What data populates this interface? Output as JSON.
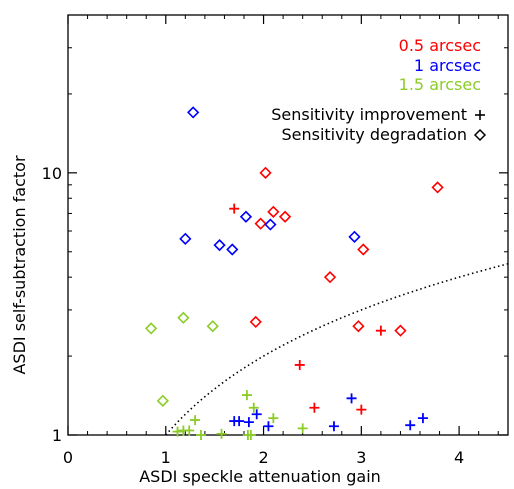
{
  "chart_data": {
    "type": "scatter",
    "title": "",
    "xlabel": "ASDI speckle attenuation gain",
    "ylabel": "ASDI self-subtraction factor",
    "xlim": [
      0,
      4.5
    ],
    "ylim": [
      1,
      40
    ],
    "y_scale": "log",
    "x_ticks": [
      "0",
      "1",
      "2",
      "3",
      "4"
    ],
    "y_ticks": [
      "1",
      "10"
    ],
    "grid": false,
    "legend_position": "top-right",
    "legend": {
      "separations": [
        {
          "label": "0.5 arcsec",
          "color": "#ff0000"
        },
        {
          "label": "1 arcsec",
          "color": "#0000ff"
        },
        {
          "label": "1.5 arcsec",
          "color": "#8ccc28"
        }
      ],
      "markers": [
        {
          "label": "Sensitivity improvement",
          "symbol": "+"
        },
        {
          "label": "Sensitivity degradation",
          "symbol": "diamond"
        }
      ]
    },
    "boundary_curve": {
      "style": "dotted",
      "description_formula": "y = x"
    },
    "series": [
      {
        "name": "0.5 arcsec",
        "color": "#ff0000",
        "points": [
          {
            "x": 2.02,
            "y": 10.0,
            "marker": "diamond"
          },
          {
            "x": 3.78,
            "y": 8.8,
            "marker": "diamond"
          },
          {
            "x": 2.1,
            "y": 7.1,
            "marker": "diamond"
          },
          {
            "x": 2.22,
            "y": 6.8,
            "marker": "diamond"
          },
          {
            "x": 1.97,
            "y": 6.4,
            "marker": "diamond"
          },
          {
            "x": 3.02,
            "y": 5.1,
            "marker": "diamond"
          },
          {
            "x": 2.68,
            "y": 4.0,
            "marker": "diamond"
          },
          {
            "x": 1.92,
            "y": 2.7,
            "marker": "diamond"
          },
          {
            "x": 2.97,
            "y": 2.6,
            "marker": "diamond"
          },
          {
            "x": 3.4,
            "y": 2.5,
            "marker": "diamond"
          },
          {
            "x": 1.7,
            "y": 7.3,
            "marker": "plus"
          },
          {
            "x": 3.2,
            "y": 2.5,
            "marker": "plus"
          },
          {
            "x": 2.37,
            "y": 1.85,
            "marker": "plus"
          },
          {
            "x": 2.52,
            "y": 1.27,
            "marker": "plus"
          },
          {
            "x": 3.0,
            "y": 1.25,
            "marker": "plus"
          }
        ]
      },
      {
        "name": "1 arcsec",
        "color": "#0000ff",
        "points": [
          {
            "x": 1.28,
            "y": 17.0,
            "marker": "diamond"
          },
          {
            "x": 1.82,
            "y": 6.8,
            "marker": "diamond"
          },
          {
            "x": 2.07,
            "y": 6.35,
            "marker": "diamond"
          },
          {
            "x": 1.2,
            "y": 5.6,
            "marker": "diamond"
          },
          {
            "x": 2.93,
            "y": 5.7,
            "marker": "diamond"
          },
          {
            "x": 1.55,
            "y": 5.3,
            "marker": "diamond"
          },
          {
            "x": 1.68,
            "y": 5.1,
            "marker": "diamond"
          },
          {
            "x": 1.7,
            "y": 1.13,
            "marker": "plus"
          },
          {
            "x": 1.75,
            "y": 1.13,
            "marker": "plus"
          },
          {
            "x": 1.85,
            "y": 1.12,
            "marker": "plus"
          },
          {
            "x": 1.93,
            "y": 1.2,
            "marker": "plus"
          },
          {
            "x": 2.05,
            "y": 1.08,
            "marker": "plus"
          },
          {
            "x": 2.72,
            "y": 1.08,
            "marker": "plus"
          },
          {
            "x": 2.9,
            "y": 1.38,
            "marker": "plus"
          },
          {
            "x": 3.5,
            "y": 1.09,
            "marker": "plus"
          },
          {
            "x": 3.63,
            "y": 1.16,
            "marker": "plus"
          }
        ]
      },
      {
        "name": "1.5 arcsec",
        "color": "#8ccc28",
        "points": [
          {
            "x": 0.85,
            "y": 2.55,
            "marker": "diamond"
          },
          {
            "x": 1.18,
            "y": 2.8,
            "marker": "diamond"
          },
          {
            "x": 1.48,
            "y": 2.6,
            "marker": "diamond"
          },
          {
            "x": 0.97,
            "y": 1.35,
            "marker": "diamond"
          },
          {
            "x": 1.12,
            "y": 1.03,
            "marker": "plus"
          },
          {
            "x": 1.18,
            "y": 1.04,
            "marker": "plus"
          },
          {
            "x": 1.24,
            "y": 1.04,
            "marker": "plus"
          },
          {
            "x": 1.3,
            "y": 1.14,
            "marker": "plus"
          },
          {
            "x": 1.36,
            "y": 1.0,
            "marker": "plus"
          },
          {
            "x": 1.57,
            "y": 1.01,
            "marker": "plus"
          },
          {
            "x": 1.83,
            "y": 1.42,
            "marker": "plus"
          },
          {
            "x": 1.84,
            "y": 1.0,
            "marker": "plus"
          },
          {
            "x": 1.87,
            "y": 1.0,
            "marker": "plus"
          },
          {
            "x": 1.9,
            "y": 1.27,
            "marker": "plus"
          },
          {
            "x": 2.1,
            "y": 1.16,
            "marker": "plus"
          },
          {
            "x": 2.4,
            "y": 1.06,
            "marker": "plus"
          }
        ]
      }
    ]
  }
}
